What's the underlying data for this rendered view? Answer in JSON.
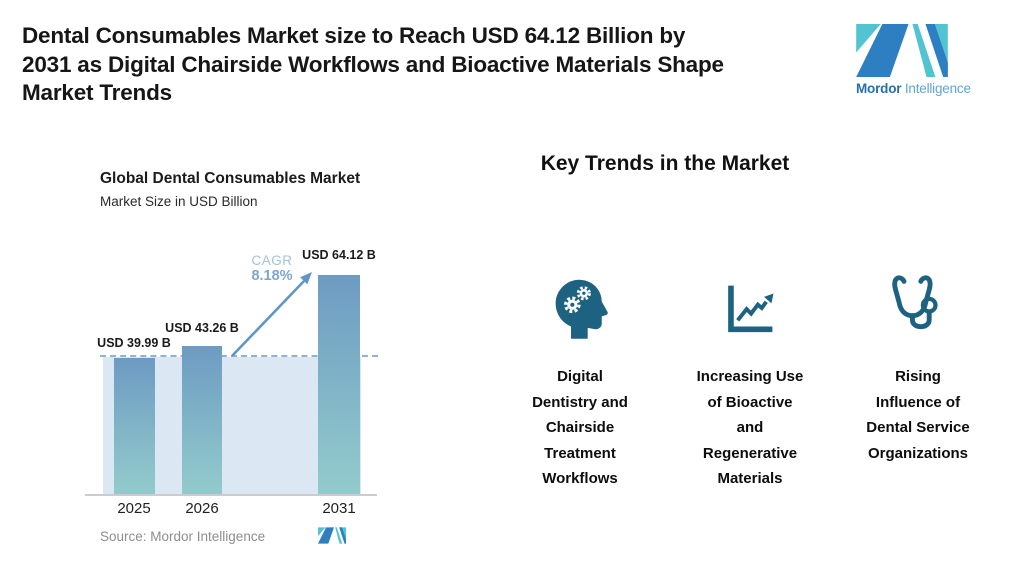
{
  "header": {
    "title_lines": [
      "Dental Consumables Market size to Reach USD 64.12 Billion by",
      "2031 as Digital Chairside Workflows and Bioactive Materials Shape",
      "Market Trends"
    ],
    "logo": {
      "word1": "Mordor",
      "word2": "Intelligence"
    }
  },
  "chart_data": {
    "type": "bar",
    "title": "Global Dental Consumables Market",
    "subtitle": "Market Size in USD Billion",
    "categories": [
      "2025",
      "2026",
      "2031"
    ],
    "values": [
      39.99,
      43.26,
      64.12
    ],
    "value_labels": [
      "USD 39.99 B",
      "USD 43.26 B",
      "USD 64.12 B"
    ],
    "cagr_label": "CAGR",
    "cagr_value": "8.18%",
    "source": "Source: Mordor Intelligence",
    "ylim": [
      0,
      70
    ],
    "reference_line_at": 39.99,
    "legend": "none",
    "grid": "off"
  },
  "trends": {
    "heading": "Key Trends in the Market",
    "items": [
      {
        "icon": "head-gears-icon",
        "label": "Digital Dentistry and Chairside Treatment Workflows",
        "lines": [
          "Digital",
          "Dentistry and",
          "Chairside",
          "Treatment",
          "Workflows"
        ]
      },
      {
        "icon": "line-chart-icon",
        "label": "Increasing Use of Bioactive and Regenerative Materials",
        "lines": [
          "Increasing Use",
          "of Bioactive",
          "and",
          "Regenerative",
          "Materials"
        ]
      },
      {
        "icon": "stethoscope-icon",
        "label": "Rising Influence of Dental Service Organizations",
        "lines": [
          "Rising",
          "Influence of",
          "Dental Service",
          "Organizations"
        ]
      }
    ]
  },
  "colors": {
    "trend_icon": "#1d6381",
    "logo_blue": "#2e7fc2",
    "logo_teal": "#52c3d0",
    "bar_top": "#6d9bc2",
    "bar_bottom": "#92c8cc",
    "band": "#dbe7f3",
    "arrow": "#6096c5",
    "cagr_text": "#79a7d2"
  }
}
